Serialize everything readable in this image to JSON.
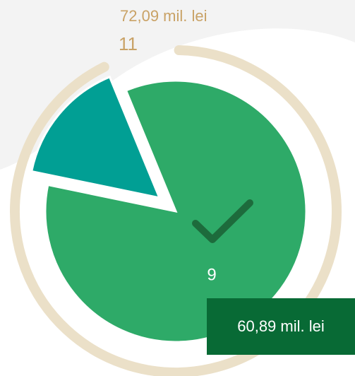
{
  "chart_data": {
    "type": "pie",
    "values": [
      60.89,
      11.2
    ],
    "value_labels": [
      "60,89 mil. lei",
      null
    ],
    "colors": [
      "#2eaa68",
      "#019f94"
    ],
    "explode": [
      false,
      true
    ],
    "annotations": [
      "72,09 mil. lei",
      "11",
      "9"
    ]
  }
}
